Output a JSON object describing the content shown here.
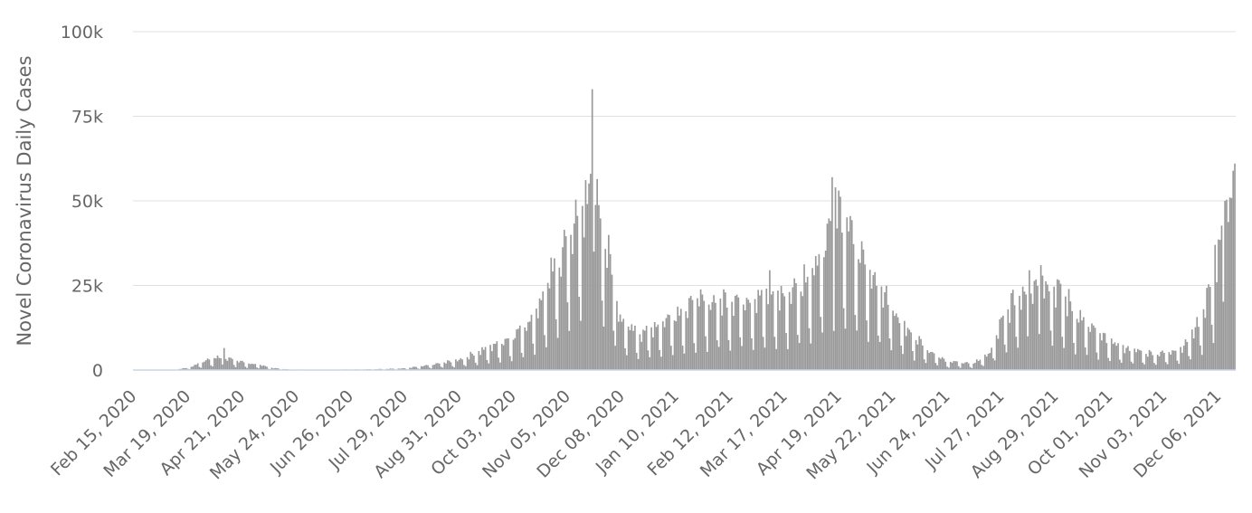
{
  "chart_data": {
    "type": "bar",
    "title": "",
    "xlabel": "",
    "ylabel": "Novel Coronavirus Daily Cases",
    "ylim": [
      0,
      100000
    ],
    "y_ticks": [
      {
        "value": 0,
        "label": "0"
      },
      {
        "value": 25000,
        "label": "25k"
      },
      {
        "value": 50000,
        "label": "50k"
      },
      {
        "value": 75000,
        "label": "75k"
      },
      {
        "value": 100000,
        "label": "100k"
      }
    ],
    "x_ticks": [
      {
        "date": "2020-02-15",
        "label": "Feb 15, 2020"
      },
      {
        "date": "2020-03-19",
        "label": "Mar 19, 2020"
      },
      {
        "date": "2020-04-21",
        "label": "Apr 21, 2020"
      },
      {
        "date": "2020-05-24",
        "label": "May 24, 2020"
      },
      {
        "date": "2020-06-26",
        "label": "Jun 26, 2020"
      },
      {
        "date": "2020-07-29",
        "label": "Jul 29, 2020"
      },
      {
        "date": "2020-08-31",
        "label": "Aug 31, 2020"
      },
      {
        "date": "2020-10-03",
        "label": "Oct 03, 2020"
      },
      {
        "date": "2020-11-05",
        "label": "Nov 05, 2020"
      },
      {
        "date": "2020-12-08",
        "label": "Dec 08, 2020"
      },
      {
        "date": "2021-01-10",
        "label": "Jan 10, 2021"
      },
      {
        "date": "2021-02-12",
        "label": "Feb 12, 2021"
      },
      {
        "date": "2021-03-17",
        "label": "Mar 17, 2021"
      },
      {
        "date": "2021-04-19",
        "label": "Apr 19, 2021"
      },
      {
        "date": "2021-05-22",
        "label": "May 22, 2021"
      },
      {
        "date": "2021-06-24",
        "label": "Jun 24, 2021"
      },
      {
        "date": "2021-07-27",
        "label": "Jul 27, 2021"
      },
      {
        "date": "2021-08-29",
        "label": "Aug 29, 2021"
      },
      {
        "date": "2021-10-01",
        "label": "Oct 01, 2021"
      },
      {
        "date": "2021-11-03",
        "label": "Nov 03, 2021"
      },
      {
        "date": "2021-12-06",
        "label": "Dec 06, 2021"
      }
    ],
    "x_range": [
      "2020-02-15",
      "2021-12-16"
    ],
    "bar_color": "#999999",
    "grid": true,
    "legend": "none",
    "series": [
      {
        "trend_points": [
          [
            "2020-02-15",
            0
          ],
          [
            "2020-03-10",
            0
          ],
          [
            "2020-03-20",
            800
          ],
          [
            "2020-03-28",
            2500
          ],
          [
            "2020-04-05",
            3800
          ],
          [
            "2020-04-12",
            3600
          ],
          [
            "2020-04-20",
            2500
          ],
          [
            "2020-05-01",
            1500
          ],
          [
            "2020-05-10",
            600
          ],
          [
            "2020-05-20",
            150
          ],
          [
            "2020-06-10",
            120
          ],
          [
            "2020-07-05",
            200
          ],
          [
            "2020-07-29",
            500
          ],
          [
            "2020-08-10",
            1200
          ],
          [
            "2020-08-31",
            3000
          ],
          [
            "2020-09-15",
            6000
          ],
          [
            "2020-10-03",
            10000
          ],
          [
            "2020-10-15",
            16000
          ],
          [
            "2020-10-25",
            26000
          ],
          [
            "2020-11-05",
            40000
          ],
          [
            "2020-11-12",
            45000
          ],
          [
            "2020-11-20",
            55000
          ],
          [
            "2020-11-26",
            45000
          ],
          [
            "2020-12-02",
            28000
          ],
          [
            "2020-12-08",
            14000
          ],
          [
            "2020-12-20",
            11000
          ],
          [
            "2021-01-01",
            14000
          ],
          [
            "2021-01-10",
            17000
          ],
          [
            "2021-01-25",
            20000
          ],
          [
            "2021-02-12",
            21000
          ],
          [
            "2021-03-01",
            22000
          ],
          [
            "2021-03-17",
            22000
          ],
          [
            "2021-03-28",
            26000
          ],
          [
            "2021-04-05",
            32000
          ],
          [
            "2021-04-12",
            40000
          ],
          [
            "2021-04-19",
            45000
          ],
          [
            "2021-04-28",
            38000
          ],
          [
            "2021-05-08",
            30000
          ],
          [
            "2021-05-22",
            18000
          ],
          [
            "2021-06-05",
            10000
          ],
          [
            "2021-06-15",
            5000
          ],
          [
            "2021-06-24",
            2500
          ],
          [
            "2021-07-10",
            2000
          ],
          [
            "2021-07-20",
            5000
          ],
          [
            "2021-07-27",
            14000
          ],
          [
            "2021-08-05",
            22000
          ],
          [
            "2021-08-15",
            25000
          ],
          [
            "2021-08-22",
            27000
          ],
          [
            "2021-09-01",
            23000
          ],
          [
            "2021-09-12",
            16000
          ],
          [
            "2021-09-25",
            10000
          ],
          [
            "2021-10-10",
            6500
          ],
          [
            "2021-10-25",
            5000
          ],
          [
            "2021-11-03",
            5000
          ],
          [
            "2021-11-15",
            7000
          ],
          [
            "2021-11-25",
            15000
          ],
          [
            "2021-12-01",
            25000
          ],
          [
            "2021-12-06",
            35000
          ],
          [
            "2021-12-11",
            47000
          ],
          [
            "2021-12-16",
            58000
          ]
        ],
        "notable_values": [
          [
            "2020-11-20",
            83000
          ],
          [
            "2020-11-19",
            58000
          ],
          [
            "2020-11-21",
            35000
          ],
          [
            "2020-11-14",
            48500
          ],
          [
            "2021-04-15",
            57000
          ],
          [
            "2021-04-17",
            54000
          ],
          [
            "2021-12-16",
            61000
          ],
          [
            "2021-12-13",
            51000
          ],
          [
            "2020-04-10",
            6500
          ],
          [
            "2021-08-20",
            31000
          ],
          [
            "2021-08-13",
            29500
          ],
          [
            "2021-04-25",
            41000
          ],
          [
            "2021-03-08",
            29500
          ],
          [
            "2021-12-04",
            37000
          ],
          [
            "2021-12-10",
            50000
          ]
        ],
        "weekly_pattern": [
          1.0,
          0.85,
          1.1,
          1.05,
          1.0,
          0.45,
          0.3
        ]
      }
    ]
  }
}
